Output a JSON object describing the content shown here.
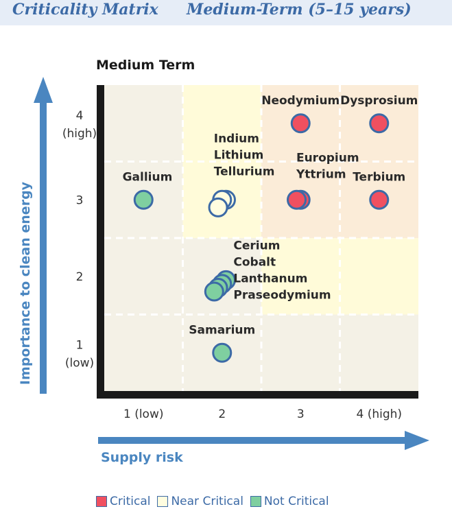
{
  "header": {
    "title_left": "Criticality Matrix",
    "title_right": "Medium-Term (5–15 years)"
  },
  "chart_data": {
    "type": "scatter",
    "title": "Medium Term",
    "xlabel": "Supply risk",
    "ylabel": "Importance to clean energy",
    "xlim": [
      0.5,
      4.5
    ],
    "ylim": [
      0.5,
      4.5
    ],
    "x_ticks": [
      {
        "value": 1,
        "label": "1 (low)"
      },
      {
        "value": 2,
        "label": "2"
      },
      {
        "value": 3,
        "label": "3"
      },
      {
        "value": 4,
        "label": "4 (high)"
      }
    ],
    "y_ticks": [
      {
        "value": 1,
        "lines": [
          "1",
          "(low)"
        ]
      },
      {
        "value": 2,
        "lines": [
          "2"
        ]
      },
      {
        "value": 3,
        "lines": [
          "3"
        ]
      },
      {
        "value": 4,
        "lines": [
          "4",
          "(high)"
        ]
      }
    ],
    "grid": true,
    "legend_position": "bottom",
    "categories": [
      {
        "name": "Critical",
        "color": "#f05060"
      },
      {
        "name": "Near Critical",
        "color": "#fffde0"
      },
      {
        "name": "Not Critical",
        "color": "#7fcfa0"
      }
    ],
    "points": [
      {
        "label": "Neodymium",
        "x": 3.0,
        "y": 4.0,
        "category": "Critical"
      },
      {
        "label": "Dysprosium",
        "x": 4.0,
        "y": 4.0,
        "category": "Critical"
      },
      {
        "label": "Europium",
        "x": 3.0,
        "y": 3.0,
        "category": "Critical"
      },
      {
        "label": "Yttrium",
        "x": 2.95,
        "y": 3.0,
        "category": "Critical"
      },
      {
        "label": "Terbium",
        "x": 4.0,
        "y": 3.0,
        "category": "Critical"
      },
      {
        "label": "Gallium",
        "x": 1.0,
        "y": 3.0,
        "category": "Not Critical"
      },
      {
        "label": "Indium",
        "x": 2.05,
        "y": 3.0,
        "category": "Near Critical"
      },
      {
        "label": "Lithium",
        "x": 2.0,
        "y": 3.0,
        "category": "Near Critical"
      },
      {
        "label": "Tellurium",
        "x": 1.95,
        "y": 2.9,
        "category": "Near Critical"
      },
      {
        "label": "Cerium",
        "x": 2.05,
        "y": 1.95,
        "category": "Not Critical"
      },
      {
        "label": "Cobalt",
        "x": 2.0,
        "y": 1.9,
        "category": "Not Critical"
      },
      {
        "label": "Lanthanum",
        "x": 1.95,
        "y": 1.85,
        "category": "Not Critical"
      },
      {
        "label": "Praseodymium",
        "x": 1.9,
        "y": 1.8,
        "category": "Not Critical"
      },
      {
        "label": "Samarium",
        "x": 2.0,
        "y": 1.0,
        "category": "Not Critical"
      }
    ],
    "annotations": [
      {
        "text_lines": [
          "Neodymium"
        ],
        "x": 3.0,
        "y": 4.25
      },
      {
        "text_lines": [
          "Dysprosium"
        ],
        "x": 4.0,
        "y": 4.25
      },
      {
        "text_lines": [
          "Indium",
          "Lithium",
          "Tellurium"
        ],
        "x": 2.0,
        "y": 3.75
      },
      {
        "text_lines": [
          "Europium",
          "Yttrium"
        ],
        "x": 3.05,
        "y": 3.5
      },
      {
        "text_lines": [
          "Gallium"
        ],
        "x": 1.05,
        "y": 3.25
      },
      {
        "text_lines": [
          "Terbium"
        ],
        "x": 4.0,
        "y": 3.25
      },
      {
        "text_lines": [
          "Cerium",
          "Cobalt",
          "Lanthanum",
          "Praseodymium"
        ],
        "x": 2.25,
        "y": 2.35
      },
      {
        "text_lines": [
          "Samarium"
        ],
        "x": 2.0,
        "y": 1.25
      }
    ]
  }
}
